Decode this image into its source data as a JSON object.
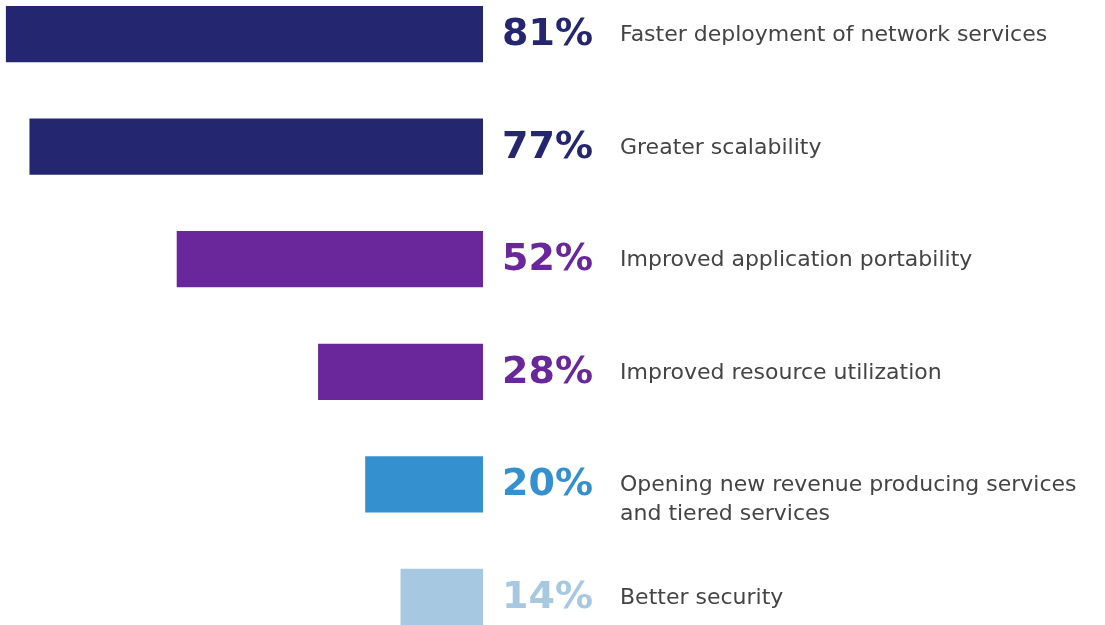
{
  "chart_data": {
    "type": "bar",
    "orientation": "horizontal",
    "categories": [
      "Faster deployment of network services",
      "Greater scalability",
      "Improved application portability",
      "Improved resource utilization",
      "Opening new revenue producing services and tiered services",
      "Better security"
    ],
    "values": [
      81,
      77,
      52,
      28,
      20,
      14
    ],
    "value_labels": [
      "81%",
      "77%",
      "52%",
      "28%",
      "20%",
      "14%"
    ],
    "colors": [
      "#24276f",
      "#24276f",
      "#6a279b",
      "#6a279b",
      "#3590d0",
      "#a6c8e0"
    ],
    "xlim": [
      82,
      0
    ]
  }
}
